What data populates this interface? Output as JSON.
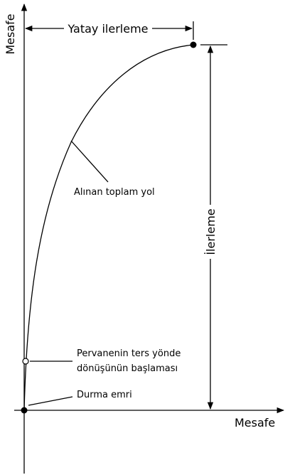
{
  "axes": {
    "y_label": "Mesafe",
    "x_label": "Mesafe"
  },
  "labels": {
    "horizontal": "Yatay ilerleme",
    "path": "Alınan toplam yol",
    "advance": "İlerleme",
    "reverse": [
      "Pervanenin ters yönde",
      "dönüşünün başlaması"
    ],
    "stop": "Durma emri"
  }
}
